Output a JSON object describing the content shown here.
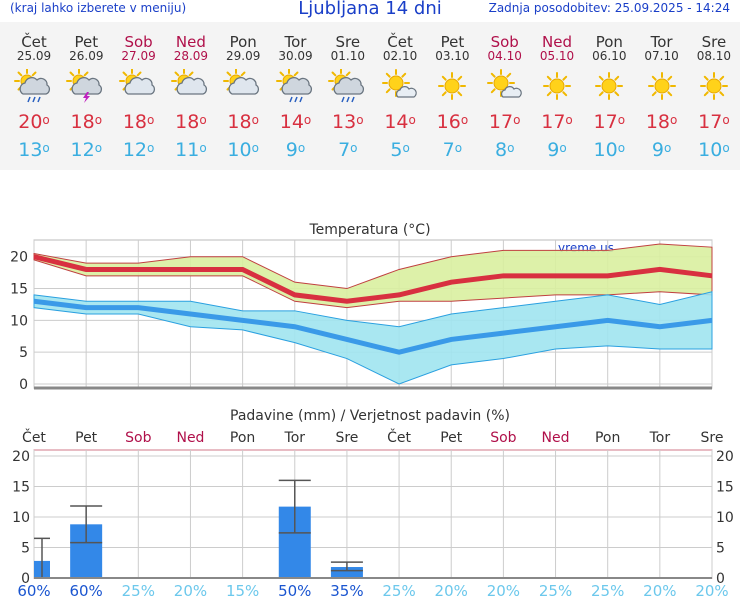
{
  "header": {
    "menu_hint": "(kraj lahko izberete v meniju)",
    "title": "Ljubljana 14 dni",
    "updated": "Zadnja posodobitev: 25.09.2025 - 14:24"
  },
  "days": [
    {
      "name": "Čet",
      "date": "25.09",
      "weekend": false,
      "icon": "partly-cloudy-rain-icon",
      "max": "20",
      "min": "13"
    },
    {
      "name": "Pet",
      "date": "26.09",
      "weekend": false,
      "icon": "partly-cloudy-thunder-icon",
      "max": "18",
      "min": "12"
    },
    {
      "name": "Sob",
      "date": "27.09",
      "weekend": true,
      "icon": "partly-cloudy-icon",
      "max": "18",
      "min": "12"
    },
    {
      "name": "Ned",
      "date": "28.09",
      "weekend": true,
      "icon": "partly-cloudy-icon",
      "max": "18",
      "min": "11"
    },
    {
      "name": "Pon",
      "date": "29.09",
      "weekend": false,
      "icon": "partly-cloudy-icon",
      "max": "18",
      "min": "10"
    },
    {
      "name": "Tor",
      "date": "30.09",
      "weekend": false,
      "icon": "partly-cloudy-rain-icon",
      "max": "14",
      "min": "9"
    },
    {
      "name": "Sre",
      "date": "01.10",
      "weekend": false,
      "icon": "partly-cloudy-rain-icon",
      "max": "13",
      "min": "7"
    },
    {
      "name": "Čet",
      "date": "02.10",
      "weekend": false,
      "icon": "sun-cloud-icon",
      "max": "14",
      "min": "5"
    },
    {
      "name": "Pet",
      "date": "03.10",
      "weekend": false,
      "icon": "sun-icon",
      "max": "16",
      "min": "7"
    },
    {
      "name": "Sob",
      "date": "04.10",
      "weekend": true,
      "icon": "sun-cloud-icon",
      "max": "17",
      "min": "8"
    },
    {
      "name": "Ned",
      "date": "05.10",
      "weekend": true,
      "icon": "sun-icon",
      "max": "17",
      "min": "9"
    },
    {
      "name": "Pon",
      "date": "06.10",
      "weekend": false,
      "icon": "sun-icon",
      "max": "17",
      "min": "10"
    },
    {
      "name": "Tor",
      "date": "07.10",
      "weekend": false,
      "icon": "sun-icon",
      "max": "18",
      "min": "9"
    },
    {
      "name": "Sre",
      "date": "08.10",
      "weekend": false,
      "icon": "sun-icon",
      "max": "17",
      "min": "10"
    }
  ],
  "degree_symbol": "o",
  "colors": {
    "max": "#d83040",
    "min": "#3aaee0",
    "weekend": "#b0104a",
    "bar": "#3388e8",
    "band_max": "#d9f0a0",
    "band_min": "#a0e4f0"
  },
  "chart_data": [
    {
      "type": "line",
      "title": "Temperatura (°C)",
      "watermark": "vreme.us",
      "categories": [
        "Čet",
        "Pet",
        "Sob",
        "Ned",
        "Pon",
        "Tor",
        "Sre",
        "Čet",
        "Pet",
        "Sob",
        "Ned",
        "Pon",
        "Tor",
        "Sre"
      ],
      "ylim": [
        0,
        22
      ],
      "yticks": [
        0,
        5,
        10,
        15,
        20
      ],
      "series": [
        {
          "key": "max",
          "values": [
            20,
            18,
            18,
            18,
            18,
            14,
            13,
            14,
            16,
            17,
            17,
            17,
            18,
            17
          ],
          "band_low": [
            19.5,
            17,
            17,
            17,
            17,
            13,
            12,
            13,
            13,
            13.5,
            14,
            14,
            14.5,
            14
          ],
          "band_high": [
            20.5,
            19,
            19,
            20,
            20,
            16,
            15,
            18,
            20,
            21,
            21,
            21,
            22,
            21.5
          ]
        },
        {
          "key": "min",
          "values": [
            13,
            12,
            12,
            11,
            10,
            9,
            7,
            5,
            7,
            8,
            9,
            10,
            9,
            10
          ],
          "band_low": [
            12,
            11,
            11,
            9,
            8.5,
            6.5,
            4,
            0,
            3,
            4,
            5.5,
            6,
            5.5,
            5.5
          ],
          "band_high": [
            14,
            13,
            13,
            13,
            11.5,
            11.5,
            10,
            9,
            11,
            12,
            13,
            14,
            12.5,
            14.5
          ]
        }
      ]
    },
    {
      "type": "bar",
      "title": "Padavine (mm) / Verjetnost padavin (%)",
      "categories": [
        "Čet",
        "Pet",
        "Sob",
        "Ned",
        "Pon",
        "Tor",
        "Sre"
      ],
      "weekend": [
        false,
        false,
        true,
        true,
        false,
        false,
        false
      ],
      "ylim": [
        0,
        20
      ],
      "yticks": [
        0,
        5,
        10,
        15,
        20
      ],
      "values": [
        2.8,
        8.8,
        0,
        0,
        0,
        11.7,
        1.8
      ],
      "error_low": [
        0,
        5.8,
        0,
        0,
        0,
        7.4,
        1.2
      ],
      "error_high": [
        6.5,
        11.8,
        0,
        0,
        0,
        16,
        2.6
      ],
      "probability": [
        "60%",
        "60%",
        "25%",
        "20%",
        "15%",
        "50%",
        "35%",
        "25%",
        "20%",
        "20%",
        "25%",
        "25%",
        "20%",
        "20%"
      ],
      "probability_strong": [
        true,
        true,
        false,
        false,
        false,
        true,
        true,
        false,
        false,
        false,
        false,
        false,
        false,
        false
      ]
    }
  ]
}
